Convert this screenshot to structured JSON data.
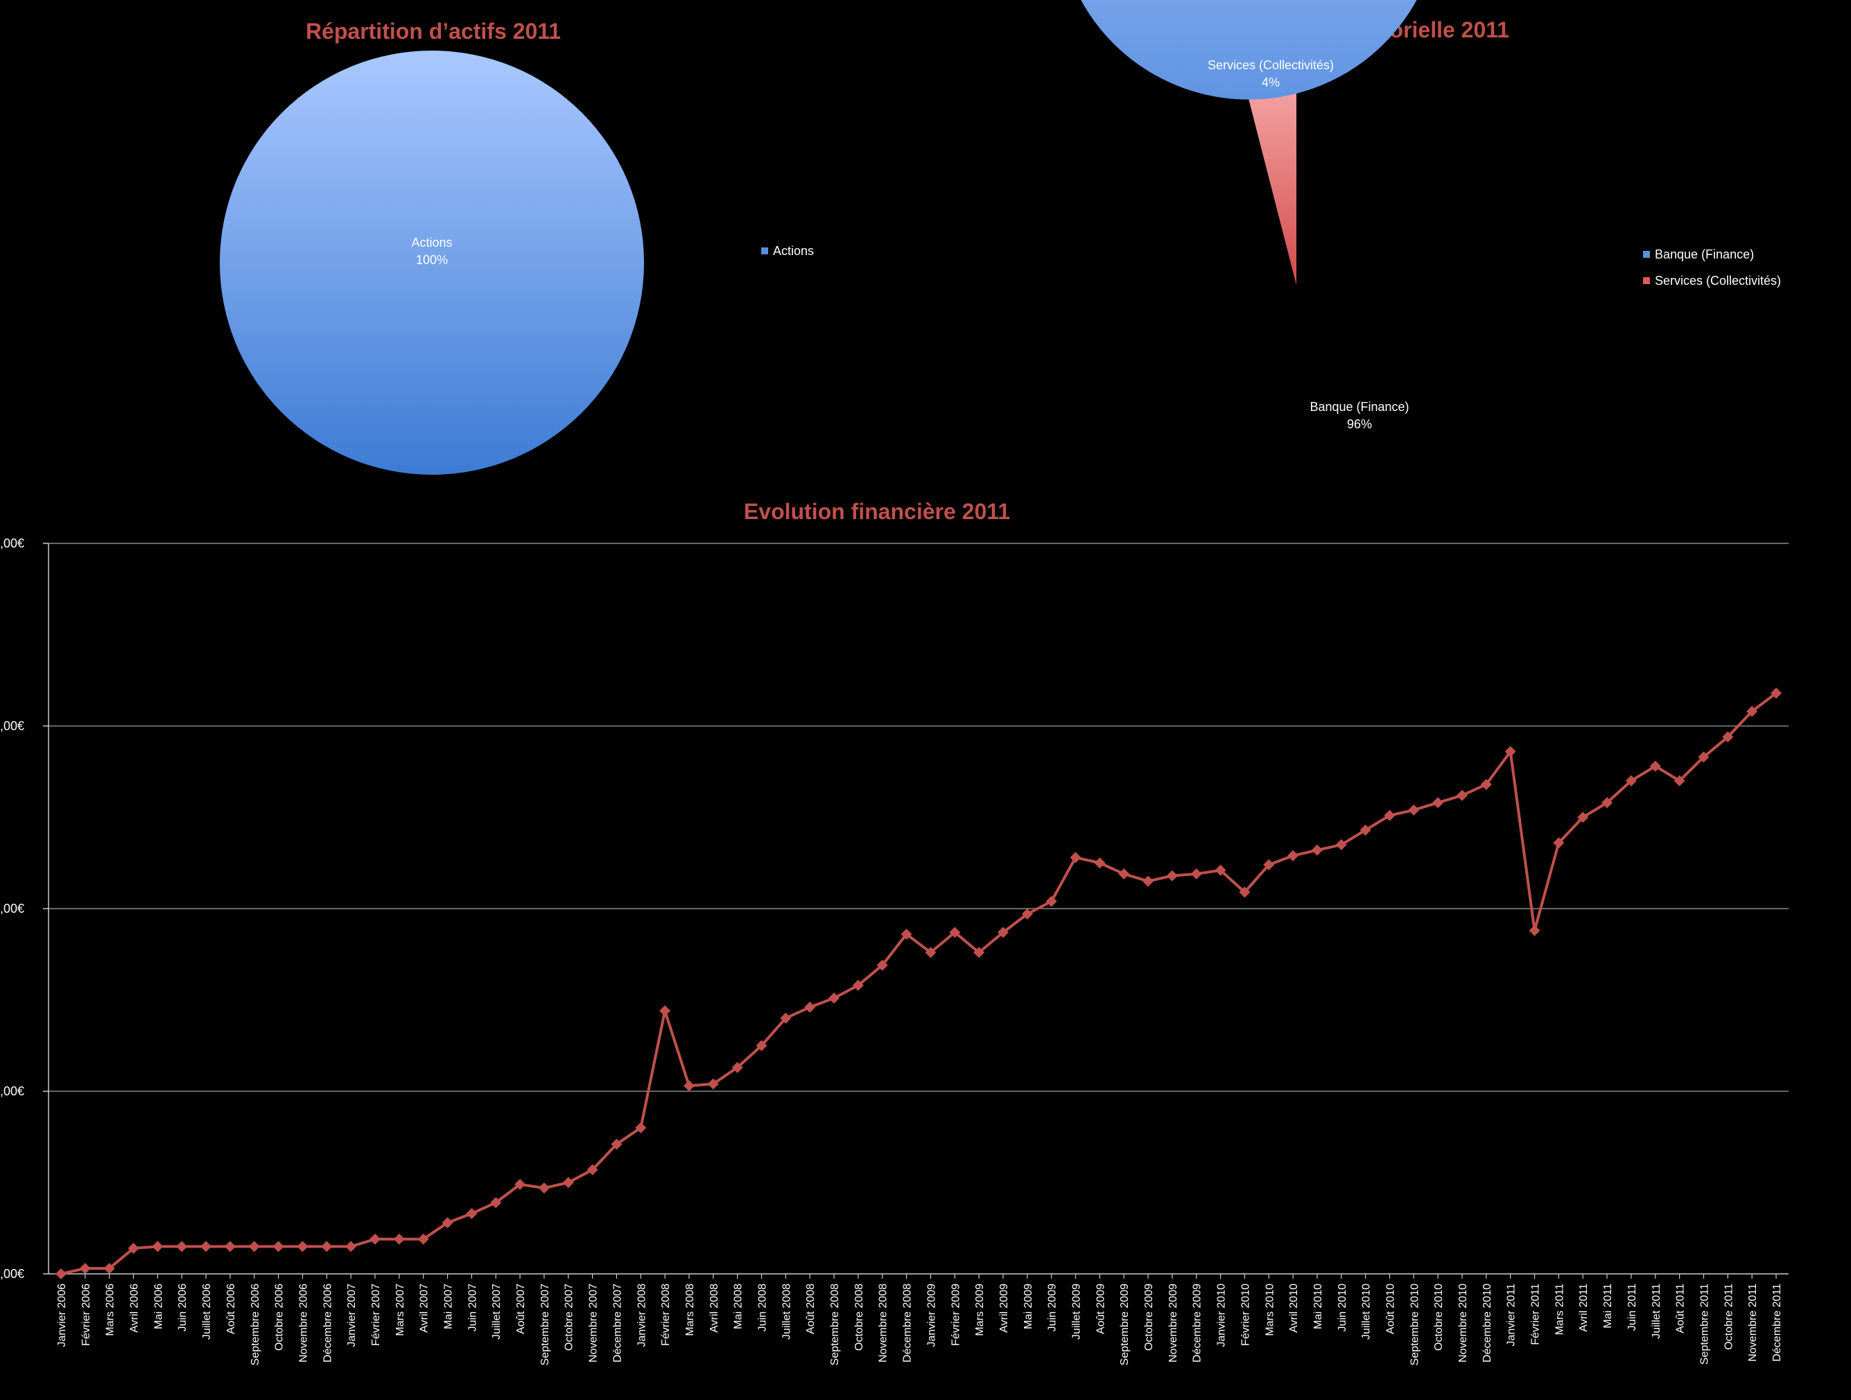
{
  "chart_data": [
    {
      "type": "pie",
      "title": "Répartition d’actifs 2011",
      "slices": [
        {
          "label": "Actions",
          "percent_label": "100%",
          "value": 100,
          "color": "#5b8fd9"
        }
      ],
      "legend": {
        "position": "right",
        "entries": [
          "Actions"
        ]
      }
    },
    {
      "type": "pie",
      "title": "Allocation sectorielle 2011",
      "slices": [
        {
          "label": "Banque (Finance)",
          "percent_label": "96%",
          "value": 96,
          "color": "#5b8fd9"
        },
        {
          "label": "Services (Collectivités)",
          "percent_label": "4%",
          "value": 4,
          "color": "#e05a5a"
        }
      ],
      "legend": {
        "position": "right",
        "entries": [
          "Banque (Finance)",
          "Services (Collectivités)"
        ]
      }
    },
    {
      "type": "line",
      "title": "Evolution financière 2011",
      "series_color": "#c0504d",
      "grid": true,
      "ylim": [
        0,
        4
      ],
      "y_tick_labels": [
        ",00€",
        ",00€",
        ",00€",
        ",00€",
        ",00€"
      ],
      "categories": [
        "Janvier 2006",
        "Février 2006",
        "Mars 2006",
        "Avril 2006",
        "Mai 2006",
        "Juin 2006",
        "Juillet 2006",
        "Août 2006",
        "Septembre 2006",
        "Octobre 2006",
        "Novembre 2006",
        "Décembre 2006",
        "Janvier 2007",
        "Février 2007",
        "Mars 2007",
        "Avril 2007",
        "Mai 2007",
        "Juin 2007",
        "Juillet 2007",
        "Août 2007",
        "Septembre 2007",
        "Octobre 2007",
        "Novembre 2007",
        "Décembre 2007",
        "Janvier 2008",
        "Février 2008",
        "Mars 2008",
        "Avril 2008",
        "Mai 2008",
        "Juin 2008",
        "Juillet 2008",
        "Août 2008",
        "Septembre 2008",
        "Octobre 2008",
        "Novembre 2008",
        "Décembre 2008",
        "Janvier 2009",
        "Février 2009",
        "Mars 2009",
        "Avril 2009",
        "Mai 2009",
        "Juin 2009",
        "Juillet 2009",
        "Août 2009",
        "Septembre 2009",
        "Octobre 2009",
        "Novembre 2009",
        "Décembre 2009",
        "Janvier 2010",
        "Février 2010",
        "Mars 2010",
        "Avril 2010",
        "Mai 2010",
        "Juin 2010",
        "Juillet 2010",
        "Août 2010",
        "Septembre 2010",
        "Octobre 2010",
        "Novembre 2010",
        "Décembre 2010",
        "Janvier 2011",
        "Février 2011",
        "Mars 2011",
        "Avril 2011",
        "Mai 2011",
        "Juin 2011",
        "Juillet 2011",
        "Août 2011",
        "Septembre 2011",
        "Octobre 2011",
        "Novembre 2011",
        "Décembre 2011"
      ],
      "values": [
        0.0,
        0.03,
        0.03,
        0.14,
        0.15,
        0.15,
        0.15,
        0.15,
        0.15,
        0.15,
        0.15,
        0.15,
        0.15,
        0.19,
        0.19,
        0.19,
        0.28,
        0.33,
        0.39,
        0.49,
        0.47,
        0.5,
        0.57,
        0.71,
        0.8,
        1.44,
        1.03,
        1.04,
        1.13,
        1.25,
        1.4,
        1.46,
        1.51,
        1.58,
        1.69,
        1.86,
        1.76,
        1.87,
        1.76,
        1.87,
        1.97,
        2.04,
        2.28,
        2.25,
        2.19,
        2.15,
        2.18,
        2.19,
        2.21,
        2.09,
        2.24,
        2.29,
        2.32,
        2.35,
        2.43,
        2.51,
        2.54,
        2.58,
        2.62,
        2.68,
        2.86,
        1.88,
        2.36,
        2.5,
        2.58,
        2.7,
        2.78,
        2.7,
        2.83,
        2.94,
        3.08,
        3.18
      ]
    }
  ]
}
